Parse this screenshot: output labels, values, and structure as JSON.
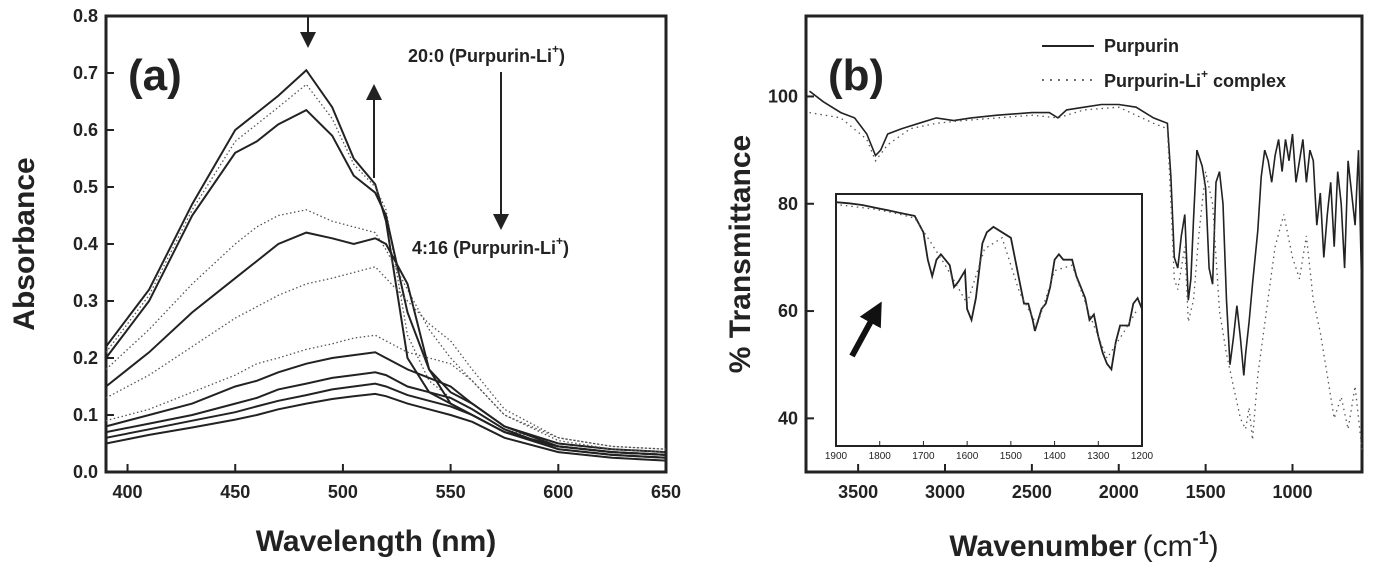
{
  "chart_data": [
    {
      "id": "a",
      "type": "line",
      "panel_label": "(a)",
      "xlabel": "Wavelength (nm)",
      "ylabel": "Absorbance",
      "xlim": [
        390,
        650
      ],
      "ylim": [
        0.0,
        0.8
      ],
      "xticks": [
        "400",
        "450",
        "500",
        "550",
        "600",
        "650"
      ],
      "yticks": [
        "0.0",
        "0.1",
        "0.2",
        "0.3",
        "0.4",
        "0.5",
        "0.6",
        "0.7",
        "0.8"
      ],
      "annotations": {
        "start_label": "20:0 (Purpurin-Li",
        "end_label": "4:16 (Purpurin-Li",
        "superscript": "+",
        "close": ")"
      },
      "series": [
        {
          "style": "solid",
          "x": [
            390,
            410,
            430,
            450,
            460,
            470,
            483,
            495,
            505,
            515,
            520,
            530,
            540,
            550,
            560,
            575,
            600,
            625,
            650
          ],
          "y": [
            0.22,
            0.32,
            0.47,
            0.6,
            0.63,
            0.66,
            0.705,
            0.64,
            0.55,
            0.505,
            0.44,
            0.2,
            0.14,
            0.12,
            0.1,
            0.07,
            0.045,
            0.035,
            0.03
          ]
        },
        {
          "style": "dotted",
          "x": [
            390,
            410,
            430,
            450,
            460,
            470,
            483,
            495,
            505,
            515,
            520,
            530,
            540,
            550,
            560,
            575,
            600,
            625,
            650
          ],
          "y": [
            0.21,
            0.31,
            0.46,
            0.58,
            0.61,
            0.64,
            0.68,
            0.62,
            0.54,
            0.5,
            0.46,
            0.24,
            0.16,
            0.13,
            0.11,
            0.075,
            0.05,
            0.04,
            0.035
          ]
        },
        {
          "style": "solid",
          "x": [
            390,
            410,
            430,
            450,
            460,
            470,
            483,
            495,
            505,
            515,
            520,
            530,
            540,
            550,
            560,
            575,
            600,
            625,
            650
          ],
          "y": [
            0.2,
            0.3,
            0.45,
            0.56,
            0.58,
            0.61,
            0.635,
            0.59,
            0.52,
            0.49,
            0.45,
            0.28,
            0.18,
            0.14,
            0.12,
            0.08,
            0.05,
            0.04,
            0.035
          ]
        },
        {
          "style": "dotted",
          "x": [
            390,
            410,
            430,
            450,
            460,
            470,
            483,
            495,
            505,
            515,
            520,
            530,
            540,
            550,
            560,
            575,
            600,
            625,
            650
          ],
          "y": [
            0.18,
            0.25,
            0.33,
            0.4,
            0.43,
            0.45,
            0.46,
            0.44,
            0.43,
            0.42,
            0.39,
            0.32,
            0.25,
            0.2,
            0.16,
            0.1,
            0.06,
            0.045,
            0.04
          ]
        },
        {
          "style": "solid",
          "x": [
            390,
            410,
            430,
            450,
            460,
            470,
            483,
            495,
            505,
            515,
            520,
            530,
            540,
            550,
            560,
            575,
            600,
            625,
            650
          ],
          "y": [
            0.15,
            0.21,
            0.28,
            0.34,
            0.37,
            0.4,
            0.42,
            0.41,
            0.4,
            0.41,
            0.4,
            0.33,
            0.18,
            0.12,
            0.1,
            0.07,
            0.045,
            0.035,
            0.03
          ]
        },
        {
          "style": "dotted",
          "x": [
            390,
            410,
            430,
            450,
            460,
            470,
            483,
            495,
            505,
            515,
            520,
            530,
            540,
            550,
            560,
            575,
            600,
            625,
            650
          ],
          "y": [
            0.13,
            0.17,
            0.22,
            0.27,
            0.29,
            0.31,
            0.33,
            0.34,
            0.35,
            0.36,
            0.34,
            0.3,
            0.26,
            0.23,
            0.18,
            0.11,
            0.06,
            0.045,
            0.04
          ]
        },
        {
          "style": "dotted",
          "x": [
            390,
            410,
            430,
            450,
            460,
            470,
            483,
            495,
            505,
            515,
            520,
            530,
            540,
            550,
            560,
            575,
            600,
            625,
            650
          ],
          "y": [
            0.09,
            0.11,
            0.14,
            0.17,
            0.19,
            0.2,
            0.215,
            0.225,
            0.235,
            0.24,
            0.23,
            0.21,
            0.2,
            0.19,
            0.16,
            0.1,
            0.055,
            0.04,
            0.035
          ]
        },
        {
          "style": "solid",
          "x": [
            390,
            410,
            430,
            450,
            460,
            470,
            483,
            495,
            505,
            515,
            520,
            530,
            540,
            550,
            560,
            575,
            600,
            625,
            650
          ],
          "y": [
            0.08,
            0.1,
            0.12,
            0.15,
            0.16,
            0.175,
            0.19,
            0.2,
            0.205,
            0.21,
            0.2,
            0.18,
            0.165,
            0.15,
            0.12,
            0.08,
            0.045,
            0.035,
            0.03
          ]
        },
        {
          "style": "solid",
          "x": [
            390,
            410,
            430,
            450,
            460,
            470,
            483,
            495,
            505,
            515,
            520,
            530,
            540,
            550,
            560,
            575,
            600,
            625,
            650
          ],
          "y": [
            0.07,
            0.085,
            0.1,
            0.12,
            0.13,
            0.145,
            0.155,
            0.165,
            0.17,
            0.175,
            0.17,
            0.15,
            0.14,
            0.13,
            0.11,
            0.075,
            0.04,
            0.03,
            0.025
          ]
        },
        {
          "style": "solid",
          "x": [
            390,
            410,
            430,
            450,
            460,
            470,
            483,
            495,
            505,
            515,
            520,
            530,
            540,
            550,
            560,
            575,
            600,
            625,
            650
          ],
          "y": [
            0.06,
            0.075,
            0.09,
            0.105,
            0.115,
            0.125,
            0.135,
            0.145,
            0.15,
            0.155,
            0.15,
            0.135,
            0.125,
            0.115,
            0.1,
            0.07,
            0.04,
            0.03,
            0.025
          ]
        },
        {
          "style": "solid",
          "x": [
            390,
            410,
            430,
            450,
            460,
            470,
            483,
            495,
            505,
            515,
            520,
            530,
            540,
            550,
            560,
            575,
            600,
            625,
            650
          ],
          "y": [
            0.05,
            0.065,
            0.078,
            0.092,
            0.1,
            0.11,
            0.12,
            0.128,
            0.133,
            0.137,
            0.133,
            0.12,
            0.11,
            0.1,
            0.088,
            0.06,
            0.035,
            0.025,
            0.02
          ]
        }
      ]
    },
    {
      "id": "b",
      "type": "line",
      "panel_label": "(b)",
      "xlabel": "Wavenumber",
      "xlabel_unit": "(cm",
      "xlabel_sup": "-1",
      "xlabel_close": ")",
      "ylabel": "% Transmittance",
      "xlim": [
        3800,
        600
      ],
      "ylim": [
        30,
        115
      ],
      "xticks": [
        "3500",
        "3000",
        "2500",
        "2000",
        "1500",
        "1000"
      ],
      "yticks": [
        "40",
        "60",
        "80",
        "100"
      ],
      "legend": {
        "placement": "top-right",
        "entries": [
          {
            "name": "Purpurin",
            "style": "solid"
          },
          {
            "name_main": "Purpurin-Li",
            "name_sup": "+",
            "name_tail": " complex",
            "style": "dashed"
          }
        ]
      },
      "series": [
        {
          "name": "Purpurin",
          "style": "solid",
          "x": [
            3780,
            3700,
            3600,
            3520,
            3450,
            3400,
            3370,
            3330,
            3250,
            3150,
            3050,
            2950,
            2850,
            2700,
            2500,
            2400,
            2350,
            2300,
            2200,
            2100,
            2000,
            1900,
            1800,
            1720,
            1700,
            1680,
            1660,
            1640,
            1620,
            1600,
            1585,
            1570,
            1550,
            1520,
            1500,
            1480,
            1460,
            1440,
            1420,
            1400,
            1380,
            1360,
            1340,
            1320,
            1300,
            1280,
            1270,
            1250,
            1230,
            1200,
            1180,
            1160,
            1140,
            1120,
            1100,
            1080,
            1060,
            1040,
            1020,
            1000,
            980,
            960,
            940,
            920,
            900,
            880,
            860,
            840,
            820,
            800,
            780,
            760,
            740,
            720,
            700,
            680,
            660,
            640,
            620,
            600
          ],
          "y": [
            101,
            99,
            97,
            96,
            93,
            89,
            90,
            93,
            94,
            95,
            96,
            95.5,
            96,
            96.5,
            97,
            97,
            96,
            97.5,
            98,
            98.5,
            98.5,
            98,
            96,
            95,
            85,
            70,
            68,
            74,
            78,
            62,
            66,
            77,
            90,
            87,
            83,
            68,
            65,
            84,
            86,
            80,
            62,
            50,
            55,
            61,
            55,
            48,
            52,
            58,
            65,
            75,
            85,
            90,
            88,
            84,
            89,
            92,
            86,
            92,
            88,
            93,
            84,
            88,
            92,
            84,
            90,
            88,
            76,
            82,
            70,
            78,
            84,
            72,
            86,
            80,
            68,
            88,
            82,
            76,
            90,
            62
          ]
        },
        {
          "name": "Purpurin-Li+ complex",
          "style": "dashed",
          "x": [
            3780,
            3600,
            3450,
            3400,
            3330,
            3200,
            3050,
            2900,
            2700,
            2500,
            2350,
            2200,
            2000,
            1800,
            1720,
            1700,
            1680,
            1660,
            1620,
            1600,
            1570,
            1540,
            1500,
            1460,
            1420,
            1380,
            1340,
            1300,
            1270,
            1250,
            1230,
            1200,
            1150,
            1100,
            1050,
            1000,
            960,
            920,
            880,
            840,
            800,
            760,
            720,
            680,
            640,
            600
          ],
          "y": [
            97,
            96,
            92,
            88,
            91,
            94,
            95,
            95.5,
            96,
            96.5,
            96,
            97.5,
            98,
            95,
            94,
            80,
            66,
            64,
            72,
            58,
            62,
            74,
            86,
            80,
            60,
            52,
            46,
            40,
            38,
            42,
            36,
            48,
            60,
            72,
            78,
            70,
            66,
            74,
            62,
            56,
            48,
            40,
            44,
            38,
            46,
            34
          ]
        }
      ],
      "inset": {
        "xlim": [
          1900,
          1200
        ],
        "ylim": [
          36,
          82
        ],
        "xticks": [
          "1900",
          "1800",
          "1700",
          "1600",
          "1500",
          "1400",
          "1300",
          "1200"
        ],
        "series": [
          {
            "style": "solid",
            "x": [
              1900,
              1870,
              1840,
              1810,
              1780,
              1750,
              1720,
              1700,
              1690,
              1680,
              1670,
              1660,
              1640,
              1630,
              1620,
              1605,
              1600,
              1590,
              1580,
              1565,
              1555,
              1540,
              1520,
              1500,
              1480,
              1470,
              1460,
              1450,
              1445,
              1430,
              1420,
              1410,
              1400,
              1390,
              1380,
              1360,
              1350,
              1340,
              1330,
              1320,
              1310,
              1300,
              1290,
              1280,
              1270,
              1260,
              1250,
              1240,
              1230,
              1220,
              1210,
              1200
            ],
            "y": [
              80.5,
              80.3,
              80,
              79.5,
              79,
              78.5,
              78,
              75,
              70,
              67,
              70,
              71,
              69,
              65,
              66,
              68,
              61,
              59,
              63,
              73,
              75,
              76,
              75,
              74,
              66,
              62,
              62,
              59,
              57,
              61,
              62,
              65,
              70,
              71,
              70,
              70,
              67,
              65,
              63,
              59,
              60,
              56,
              53,
              51,
              50,
              55,
              58,
              58,
              58,
              62,
              63,
              61
            ]
          },
          {
            "style": "dashed",
            "x": [
              1890,
              1850,
              1810,
              1760,
              1720,
              1690,
              1650,
              1600,
              1560,
              1520,
              1480,
              1440,
              1400,
              1360,
              1320,
              1280,
              1240,
              1210
            ],
            "y": [
              80,
              79.6,
              79.2,
              78.4,
              77.6,
              74,
              69,
              62,
              72,
              74,
              64,
              58,
              68,
              69,
              60,
              52,
              57,
              61
            ]
          }
        ]
      },
      "inset_arrow": "diagonal arrow pointing up-right toward the inset curves"
    }
  ]
}
